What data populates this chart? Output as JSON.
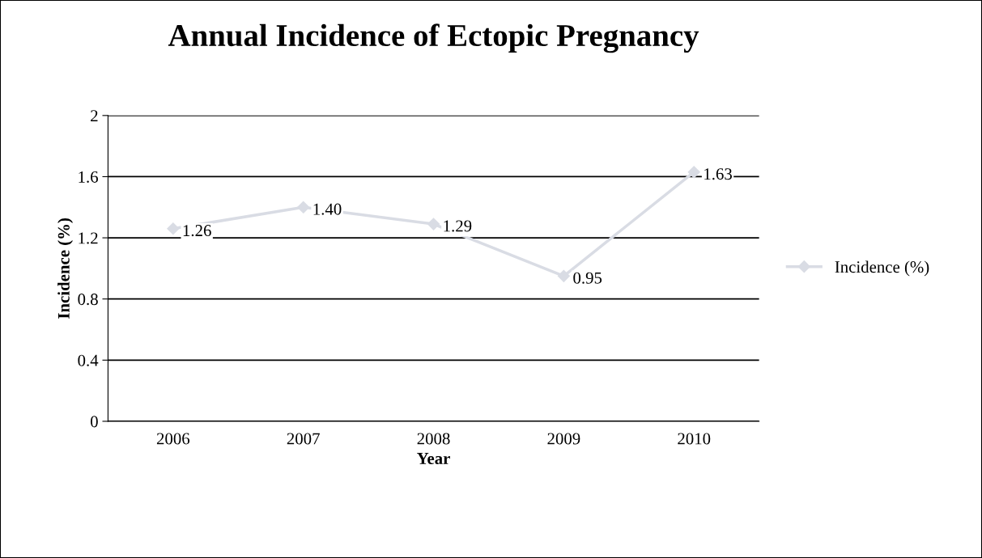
{
  "chart_data": {
    "type": "line",
    "title": "Annual Incidence of Ectopic Pregnancy",
    "xlabel": "Year",
    "ylabel": "Incidence (%)",
    "categories": [
      "2006",
      "2007",
      "2008",
      "2009",
      "2010"
    ],
    "series": [
      {
        "name": "Incidence (%)",
        "color": "#d9dce4",
        "values": [
          1.26,
          1.4,
          1.29,
          0.95,
          1.63
        ],
        "value_labels": [
          "1.26",
          "1.40",
          "1.29",
          "0.95",
          "1.63"
        ]
      }
    ],
    "ylim": [
      0,
      2
    ],
    "yticks": [
      0,
      0.4,
      0.8,
      1.2,
      1.6,
      2
    ],
    "grid": "y",
    "legend": "right",
    "marker": "diamond",
    "line_style": "solid"
  }
}
